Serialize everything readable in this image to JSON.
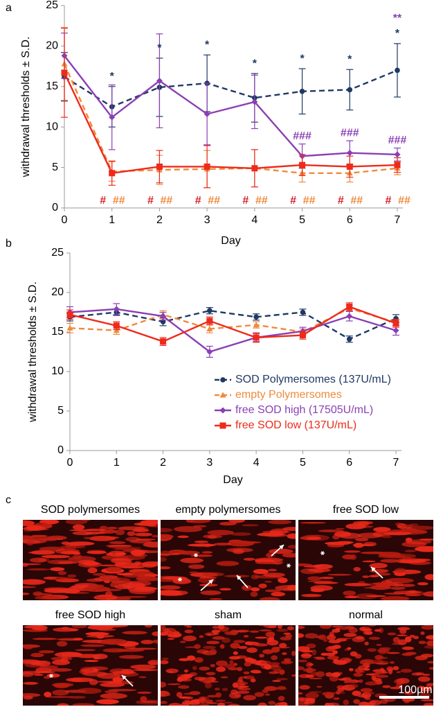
{
  "chart_data": [
    {
      "type": "line",
      "panel": "a",
      "ylabel": "withdrawal thresholds ± S.D.",
      "xlabel": "Day",
      "x": [
        0,
        1,
        2,
        3,
        4,
        5,
        6,
        7
      ],
      "xlim": [
        0,
        7
      ],
      "xticks": [
        0,
        1,
        2,
        3,
        4,
        5,
        6,
        7
      ],
      "ylim": [
        0,
        25
      ],
      "yticks": [
        0,
        5,
        10,
        15,
        20,
        25
      ],
      "grid": false,
      "series": [
        {
          "name": "SOD Polymersomes (137U/mL)",
          "color": "#1f3864",
          "linestyle": "dashed",
          "marker": "circle",
          "values": [
            16.2,
            12.5,
            14.9,
            15.4,
            13.6,
            14.4,
            14.6,
            17.0
          ],
          "errors": [
            3.0,
            2.5,
            3.6,
            3.5,
            3.0,
            2.8,
            2.5,
            3.3
          ]
        },
        {
          "name": "empty Polymersomes",
          "color": "#ef8a3c",
          "linestyle": "dashed",
          "marker": "triangle",
          "values": [
            17.8,
            4.5,
            4.7,
            4.8,
            4.9,
            4.3,
            4.3,
            4.9
          ],
          "errors": [
            4.5,
            1.2,
            1.8,
            2.3,
            2.3,
            1.1,
            1.1,
            0.8
          ]
        },
        {
          "name": "free SOD high (17505U/mL)",
          "color": "#8a3fb4",
          "linestyle": "solid",
          "marker": "diamond",
          "values": [
            18.8,
            11.2,
            15.7,
            11.6,
            13.1,
            6.4,
            6.8,
            6.6
          ],
          "errors": [
            2.8,
            4.0,
            5.8,
            3.8,
            3.3,
            1.5,
            1.5,
            0.8
          ]
        },
        {
          "name": "free SOD low (137U/mL)",
          "color": "#ee2a1a",
          "linestyle": "solid",
          "marker": "square",
          "values": [
            16.7,
            4.3,
            5.1,
            5.1,
            4.9,
            5.3,
            5.1,
            5.3
          ],
          "errors": [
            5.5,
            1.5,
            2.0,
            2.6,
            2.3,
            1.3,
            1.3,
            0.9
          ]
        }
      ],
      "annotations": [
        {
          "text": "*",
          "color": "#1f3864",
          "x": [
            1,
            2,
            3,
            4,
            5,
            6,
            7
          ]
        },
        {
          "text": "**",
          "color": "#8a3fb4",
          "x": [
            7
          ]
        },
        {
          "text": "###",
          "color": "#8a3fb4",
          "x": [
            5,
            6,
            7
          ]
        },
        {
          "text": "#",
          "color": "#d61e2a",
          "x": [
            1,
            2,
            3,
            4,
            5,
            6,
            7
          ]
        },
        {
          "text": "##",
          "color": "#ef8a3c",
          "x": [
            1,
            2,
            3,
            4,
            5,
            6,
            7
          ]
        }
      ]
    },
    {
      "type": "line",
      "panel": "b",
      "ylabel": "withdrawal thresholds ± S.D.",
      "xlabel": "Day",
      "x": [
        0,
        1,
        2,
        3,
        4,
        5,
        6,
        7
      ],
      "xlim": [
        0,
        7
      ],
      "xticks": [
        0,
        1,
        2,
        3,
        4,
        5,
        6,
        7
      ],
      "ylim": [
        0,
        25
      ],
      "yticks": [
        0,
        5,
        10,
        15,
        20,
        25
      ],
      "grid": false,
      "legend": "lower right",
      "series": [
        {
          "name": "SOD Polymersomes (137U/mL)",
          "color": "#1f3864",
          "linestyle": "dashed",
          "marker": "circle",
          "values": [
            16.9,
            17.5,
            16.3,
            17.7,
            16.9,
            17.5,
            14.1,
            16.7
          ],
          "errors": [
            0.5,
            0.4,
            0.5,
            0.4,
            0.4,
            0.4,
            0.4,
            0.5
          ]
        },
        {
          "name": "empty Polymersomes",
          "color": "#ef8a3c",
          "linestyle": "dashed",
          "marker": "triangle",
          "values": [
            15.5,
            15.2,
            17.2,
            15.4,
            15.9,
            15.0,
            18.0,
            16.2
          ],
          "errors": [
            0.6,
            0.5,
            0.5,
            0.5,
            0.4,
            0.4,
            0.4,
            0.4
          ]
        },
        {
          "name": "free SOD high (17505U/mL)",
          "color": "#8a3fb4",
          "linestyle": "solid",
          "marker": "diamond",
          "values": [
            17.5,
            17.9,
            17.0,
            12.5,
            14.3,
            15.1,
            17.0,
            15.2
          ],
          "errors": [
            0.7,
            0.7,
            0.5,
            0.7,
            0.5,
            0.5,
            0.6,
            0.6
          ]
        },
        {
          "name": "free SOD low (137U/mL)",
          "color": "#ee2a1a",
          "linestyle": "solid",
          "marker": "square",
          "values": [
            17.2,
            15.8,
            13.8,
            16.4,
            14.3,
            14.6,
            18.2,
            16.1
          ],
          "errors": [
            0.6,
            0.5,
            0.5,
            0.5,
            0.6,
            0.5,
            0.5,
            0.5
          ]
        }
      ]
    }
  ],
  "micrographs": {
    "panel": "c",
    "titles": [
      "SOD  polymersomes",
      "empty  polymersomes",
      "free SOD low",
      "free SOD high",
      "sham",
      "normal"
    ],
    "scale_bar": "100µm"
  }
}
